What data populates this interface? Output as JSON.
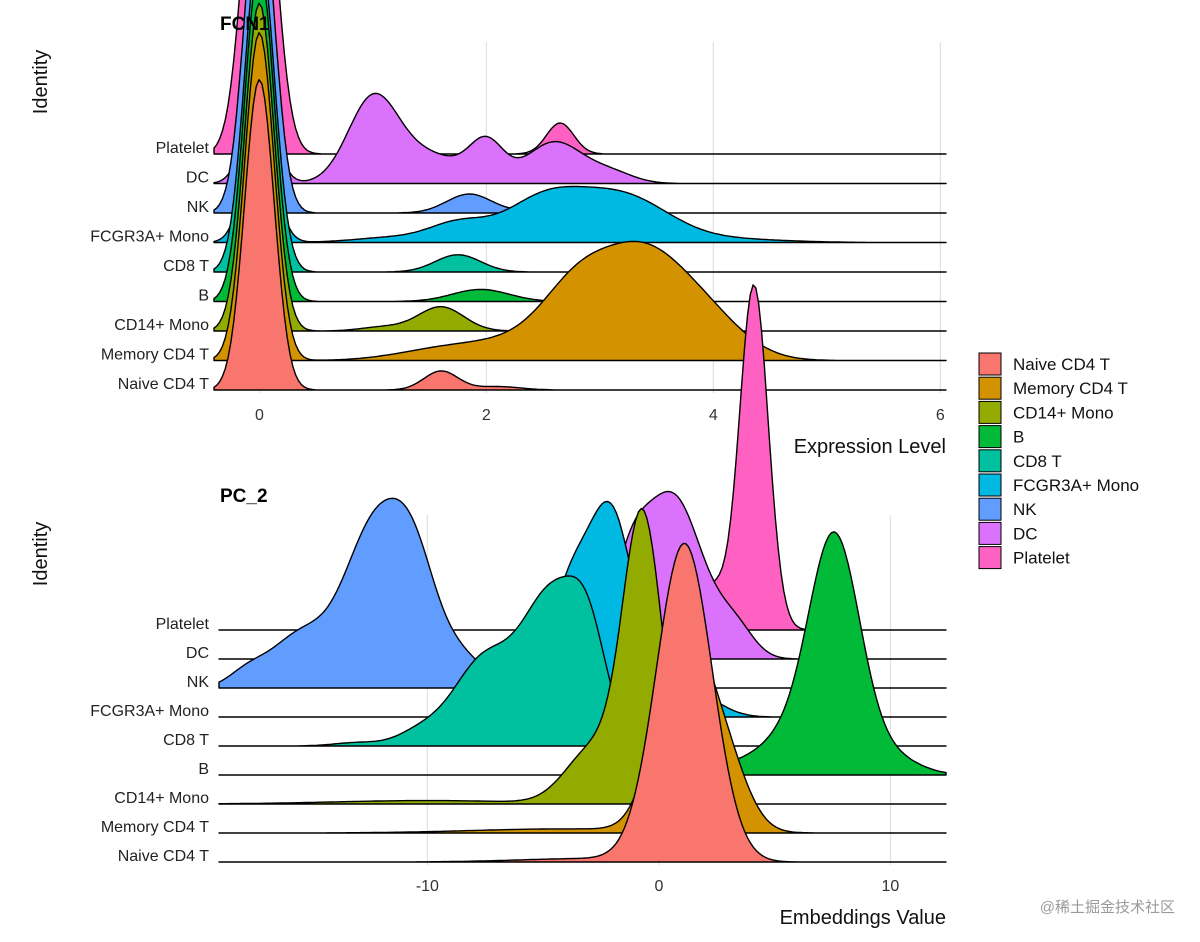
{
  "chart_data": [
    {
      "type": "ridgeline",
      "title": "FCN1",
      "xlabel": "Expression Level",
      "ylabel": "Identity",
      "xlim": [
        -0.4,
        6.05
      ],
      "xticks": [
        0,
        2,
        4,
        6
      ],
      "xtick_labels": [
        "0",
        "2",
        "4",
        "6"
      ],
      "categories": [
        "Naive CD4 T",
        "Memory CD4 T",
        "CD14+ Mono",
        "B",
        "CD8 T",
        "FCGR3A+ Mono",
        "NK",
        "DC",
        "Platelet"
      ],
      "series": [
        {
          "name": "Naive CD4 T",
          "color": "#F8766D",
          "peaks": [
            [
              0,
              0.9,
              0.13
            ],
            [
              1.6,
              0.055,
              0.15
            ],
            [
              2.1,
              0.01,
              0.2
            ]
          ]
        },
        {
          "name": "Memory CD4 T",
          "color": "#D39200",
          "peaks": [
            [
              0,
              0.95,
              0.13
            ],
            [
              1.6,
              0.03,
              0.4
            ],
            [
              2.4,
              0.06,
              0.45
            ],
            [
              2.8,
              0.16,
              0.3
            ],
            [
              3.35,
              0.27,
              0.35
            ],
            [
              3.9,
              0.13,
              0.35
            ]
          ]
        },
        {
          "name": "CD14+ Mono",
          "color": "#93AA00",
          "peaks": [
            [
              0,
              0.95,
              0.13
            ],
            [
              1.6,
              0.07,
              0.2
            ],
            [
              1.1,
              0.012,
              0.2
            ]
          ]
        },
        {
          "name": "B",
          "color": "#00BA38",
          "peaks": [
            [
              0,
              0.97,
              0.13
            ],
            [
              1.95,
              0.035,
              0.25
            ]
          ]
        },
        {
          "name": "CD8 T",
          "color": "#00C19F",
          "peaks": [
            [
              0,
              0.95,
              0.13
            ],
            [
              1.75,
              0.05,
              0.2
            ]
          ]
        },
        {
          "name": "FCGR3A+ Mono",
          "color": "#00B9E3",
          "peaks": [
            [
              0,
              0.33,
              0.13
            ],
            [
              1.2,
              0.015,
              0.35
            ],
            [
              1.75,
              0.05,
              0.25
            ],
            [
              2.5,
              0.12,
              0.35
            ],
            [
              3.2,
              0.13,
              0.4
            ],
            [
              4.1,
              0.01,
              0.5
            ]
          ]
        },
        {
          "name": "NK",
          "color": "#619CFF",
          "peaks": [
            [
              0,
              0.95,
              0.13
            ],
            [
              1.85,
              0.055,
              0.2
            ],
            [
              2.5,
              0.01,
              0.2
            ]
          ]
        },
        {
          "name": "DC",
          "color": "#DB72FB",
          "peaks": [
            [
              0,
              0.25,
              0.13
            ],
            [
              1.0,
              0.24,
              0.22
            ],
            [
              1.5,
              0.08,
              0.3
            ],
            [
              2.0,
              0.11,
              0.15
            ],
            [
              2.6,
              0.12,
              0.25
            ],
            [
              3.1,
              0.03,
              0.2
            ]
          ]
        },
        {
          "name": "Platelet",
          "color": "#FF61C3",
          "peaks": [
            [
              0,
              1.0,
              0.14
            ],
            [
              1.2,
              0.09,
              0.12
            ],
            [
              2.65,
              0.09,
              0.12
            ]
          ]
        }
      ]
    },
    {
      "type": "ridgeline",
      "title": "PC_2",
      "xlabel": "Embeddings Value",
      "ylabel": "Identity",
      "xlim": [
        -19,
        12.4
      ],
      "xticks": [
        -10,
        0,
        10
      ],
      "xtick_labels": [
        "-10",
        "0",
        "10"
      ],
      "categories": [
        "Naive CD4 T",
        "Memory CD4 T",
        "CD14+ Mono",
        "B",
        "CD8 T",
        "FCGR3A+ Mono",
        "NK",
        "DC",
        "Platelet"
      ],
      "series": [
        {
          "name": "Naive CD4 T",
          "color": "#F8766D",
          "peaks": [
            [
              1.1,
              0.92,
              1.2
            ],
            [
              -3,
              0.01,
              3
            ]
          ]
        },
        {
          "name": "Memory CD4 T",
          "color": "#D39200",
          "peaks": [
            [
              1.0,
              0.55,
              1.1
            ],
            [
              2.8,
              0.2,
              1.0
            ],
            [
              -4,
              0.012,
              4
            ]
          ]
        },
        {
          "name": "CD14+ Mono",
          "color": "#93AA00",
          "peaks": [
            [
              -0.7,
              0.82,
              0.85
            ],
            [
              -2.8,
              0.16,
              1.2
            ],
            [
              -10,
              0.01,
              4
            ]
          ]
        },
        {
          "name": "B",
          "color": "#00BA38",
          "peaks": [
            [
              7.6,
              0.66,
              1.1
            ],
            [
              5.5,
              0.1,
              1.5
            ],
            [
              1.5,
              0.03,
              1.2
            ],
            [
              10,
              0.05,
              1.2
            ]
          ]
        },
        {
          "name": "CD8 T",
          "color": "#00C19F",
          "peaks": [
            [
              -4.6,
              0.43,
              1.3
            ],
            [
              -3.0,
              0.22,
              0.8
            ],
            [
              -7.6,
              0.24,
              1.3
            ],
            [
              -10.3,
              0.04,
              1.0
            ],
            [
              -13,
              0.01,
              1
            ]
          ]
        },
        {
          "name": "FCGR3A+ Mono",
          "color": "#00B9E3",
          "peaks": [
            [
              -2.0,
              0.52,
              0.9
            ],
            [
              -3.8,
              0.38,
              1.0
            ],
            [
              0,
              0.13,
              1.0
            ],
            [
              1.8,
              0.05,
              1.0
            ]
          ]
        },
        {
          "name": "NK",
          "color": "#619CFF",
          "peaks": [
            [
              -12.3,
              0.45,
              1.3
            ],
            [
              -10.5,
              0.29,
              1.0
            ],
            [
              -15.5,
              0.15,
              1.3
            ],
            [
              -8.5,
              0.08,
              0.9
            ],
            [
              -6.5,
              0.03,
              0.8
            ],
            [
              -17.8,
              0.04,
              0.8
            ]
          ]
        },
        {
          "name": "DC",
          "color": "#DB72FB",
          "peaks": [
            [
              0.6,
              0.47,
              1.3
            ],
            [
              -1.3,
              0.2,
              0.8
            ],
            [
              3.3,
              0.08,
              0.8
            ]
          ]
        },
        {
          "name": "Platelet",
          "color": "#FF61C3",
          "peaks": [
            [
              4.1,
              1.0,
              0.62
            ],
            [
              2.3,
              0.12,
              0.6
            ],
            [
              -2.4,
              0.04,
              0.3
            ]
          ]
        }
      ]
    }
  ],
  "legend": {
    "items": [
      {
        "label": "Naive CD4 T",
        "color": "#F8766D"
      },
      {
        "label": "Memory CD4 T",
        "color": "#D39200"
      },
      {
        "label": "CD14+ Mono",
        "color": "#93AA00"
      },
      {
        "label": "B",
        "color": "#00BA38"
      },
      {
        "label": "CD8 T",
        "color": "#00C19F"
      },
      {
        "label": "FCGR3A+ Mono",
        "color": "#00B9E3"
      },
      {
        "label": "NK",
        "color": "#619CFF"
      },
      {
        "label": "DC",
        "color": "#DB72FB"
      },
      {
        "label": "Platelet",
        "color": "#FF61C3"
      }
    ]
  },
  "watermark": "@稀土掘金技术社区"
}
